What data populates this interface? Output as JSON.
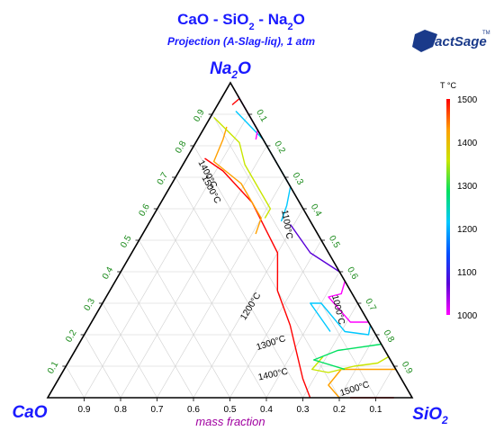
{
  "chart_data": {
    "type": "ternary",
    "title": "CaO - SiO2 - Na2O",
    "subtitle": "Projection (A-Slag-liq), 1 atm",
    "logo_text": "FactSage",
    "logo_tm": "TM",
    "vertex_labels": {
      "left": "CaO",
      "right": "SiO2",
      "top": "Na2O"
    },
    "bottom_axis_label": "mass fraction",
    "bottom_ticks": [
      "0.9",
      "0.8",
      "0.7",
      "0.6",
      "0.5",
      "0.4",
      "0.3",
      "0.2",
      "0.1"
    ],
    "left_ticks": [
      "0.1",
      "0.2",
      "0.3",
      "0.4",
      "0.5",
      "0.6",
      "0.7",
      "0.8",
      "0.9"
    ],
    "right_ticks": [
      "0.1",
      "0.2",
      "0.3",
      "0.4",
      "0.5",
      "0.6",
      "0.7",
      "0.8",
      "0.9"
    ],
    "colorbar": {
      "title": "T °C",
      "min": 1000,
      "max": 1500,
      "ticks": [
        "1500",
        "1400",
        "1300",
        "1200",
        "1100",
        "1000"
      ],
      "colors": [
        "#ff00ff",
        "#5a00d8",
        "#0050ff",
        "#00c8ff",
        "#00e060",
        "#c8e600",
        "#ffa000",
        "#ff0000"
      ]
    },
    "isotherm_labels": [
      {
        "text": "1400°C",
        "color": "#000000"
      },
      {
        "text": "1500°C",
        "color": "#000000"
      },
      {
        "text": "1100°C",
        "color": "#000000"
      },
      {
        "text": "1200°C",
        "color": "#000000"
      },
      {
        "text": "1000°C",
        "color": "#000000"
      },
      {
        "text": "1300°C",
        "color": "#000000"
      },
      {
        "text": "1400°C",
        "color": "#000000"
      },
      {
        "text": "1500°C",
        "color": "#000000"
      }
    ],
    "isotherms": [
      {
        "temperature": 1500,
        "color": "#ff0000",
        "segments": [
          [
            [
              0.17,
              0.0,
              0.83
            ],
            [
              0.09,
              0.0,
              0.91
            ],
            [
              0.05,
              0.0,
              0.95
            ]
          ],
          [
            [
              0.19,
              0.76,
              0.05
            ],
            [
              0.16,
              0.72,
              0.12
            ],
            [
              0.13,
              0.62,
              0.25
            ],
            [
              0.14,
              0.46,
              0.4
            ],
            [
              0.17,
              0.4,
              0.43
            ],
            [
              0.2,
              0.34,
              0.46
            ],
            [
              0.22,
              0.23,
              0.55
            ],
            [
              0.27,
              0.06,
              0.67
            ],
            [
              0.28,
              0.0,
              0.72
            ]
          ],
          [
            [
              0.03,
              0.93,
              0.04
            ],
            [
              0.0,
              0.95,
              0.05
            ]
          ]
        ]
      },
      {
        "temperature": 1400,
        "color": "#ffa000",
        "segments": [
          [
            [
              0.2,
              0.0,
              0.8
            ],
            [
              0.21,
              0.04,
              0.75
            ],
            [
              0.15,
              0.09,
              0.76
            ],
            [
              0.08,
              0.09,
              0.83
            ],
            [
              0.04,
              0.09,
              0.87
            ],
            [
              0.0,
              0.09,
              0.91
            ]
          ],
          [
            [
              0.08,
              0.86,
              0.06
            ],
            [
              0.11,
              0.82,
              0.07
            ],
            [
              0.17,
              0.75,
              0.08
            ],
            [
              0.13,
              0.68,
              0.19
            ],
            [
              0.13,
              0.57,
              0.3
            ],
            [
              0.17,
              0.52,
              0.31
            ]
          ]
        ]
      },
      {
        "temperature": 1300,
        "color": "#c8e600",
        "segments": [
          [
            [
              0.1,
              0.89,
              0.01
            ],
            [
              0.07,
              0.81,
              0.12
            ],
            [
              0.09,
              0.74,
              0.17
            ],
            [
              0.09,
              0.6,
              0.31
            ],
            [
              0.12,
              0.57,
              0.31
            ]
          ],
          [
            [
              0.18,
              0.13,
              0.69
            ],
            [
              0.23,
              0.09,
              0.68
            ],
            [
              0.19,
              0.08,
              0.73
            ],
            [
              0.11,
              0.1,
              0.79
            ],
            [
              0.04,
              0.11,
              0.85
            ],
            [
              0.0,
              0.13,
              0.87
            ]
          ]
        ]
      },
      {
        "temperature": 1200,
        "color": "#00e060",
        "segments": [
          [
            [
              0.14,
              0.09,
              0.77
            ],
            [
              0.21,
              0.12,
              0.67
            ],
            [
              0.13,
              0.15,
              0.72
            ],
            [
              0.0,
              0.17,
              0.83
            ]
          ]
        ]
      },
      {
        "temperature": 1150,
        "color": "#00c8ff",
        "segments": [
          [
            [
              0.03,
              0.91,
              0.06
            ],
            [
              0.0,
              0.82,
              0.18
            ],
            [
              0.0,
              0.67,
              0.33
            ],
            [
              0.04,
              0.61,
              0.35
            ],
            [
              0.08,
              0.56,
              0.36
            ]
          ],
          [
            [
              0.12,
              0.21,
              0.67
            ],
            [
              0.13,
              0.3,
              0.57
            ],
            [
              0.1,
              0.3,
              0.6
            ],
            [
              0.08,
              0.21,
              0.71
            ],
            [
              0.02,
              0.2,
              0.78
            ],
            [
              0.0,
              0.23,
              0.77
            ]
          ]
        ]
      },
      {
        "temperature": 1100,
        "color": "#5a00d8",
        "segments": [
          [
            [
              0.06,
              0.55,
              0.39
            ],
            [
              0.05,
              0.46,
              0.49
            ],
            [
              0.0,
              0.4,
              0.6
            ]
          ]
        ]
      },
      {
        "temperature": 1000,
        "color": "#ff00ff",
        "segments": [
          [
            [
              0.0,
              0.96,
              0.04
            ],
            [
              0.0,
              0.9,
              0.1
            ],
            [
              0.0,
              0.85,
              0.15
            ],
            [
              0.02,
              0.82,
              0.16
            ]
          ],
          [
            [
              0.0,
              0.37,
              0.63
            ],
            [
              0.03,
              0.33,
              0.64
            ],
            [
              0.07,
              0.32,
              0.61
            ],
            [
              0.05,
              0.24,
              0.71
            ],
            [
              0.0,
              0.24,
              0.76
            ]
          ]
        ]
      }
    ]
  }
}
